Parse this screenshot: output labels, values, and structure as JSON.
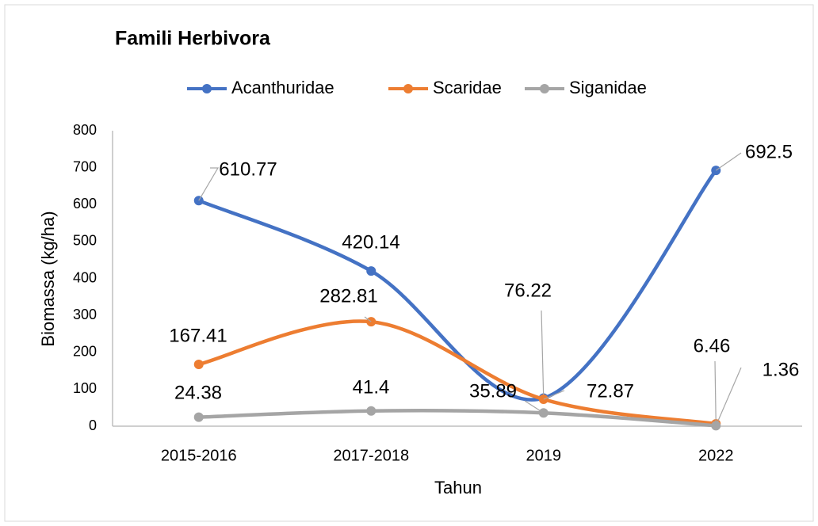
{
  "chart_data": {
    "type": "line",
    "title": "Famili Herbivora",
    "x_label": "Tahun",
    "y_label": "Biomassa (kg/ha)",
    "categories": [
      "2015-2016",
      "2017-2018",
      "2019",
      "2022"
    ],
    "series": [
      {
        "name": "Acanthuridae",
        "color": "#4472c4",
        "values": [
          610.77,
          420.14,
          76.22,
          692.5
        ]
      },
      {
        "name": "Scaridae",
        "color": "#ed7d31",
        "values": [
          167.41,
          282.81,
          72.87,
          6.46
        ]
      },
      {
        "name": "Siganidae",
        "color": "#a5a5a5",
        "values": [
          24.38,
          41.4,
          35.89,
          1.36
        ]
      }
    ],
    "ylim": [
      0,
      800
    ],
    "yticks": [
      0,
      100,
      200,
      300,
      400,
      500,
      600,
      700,
      800
    ],
    "grid": false,
    "smooth": true,
    "legend": "top"
  }
}
